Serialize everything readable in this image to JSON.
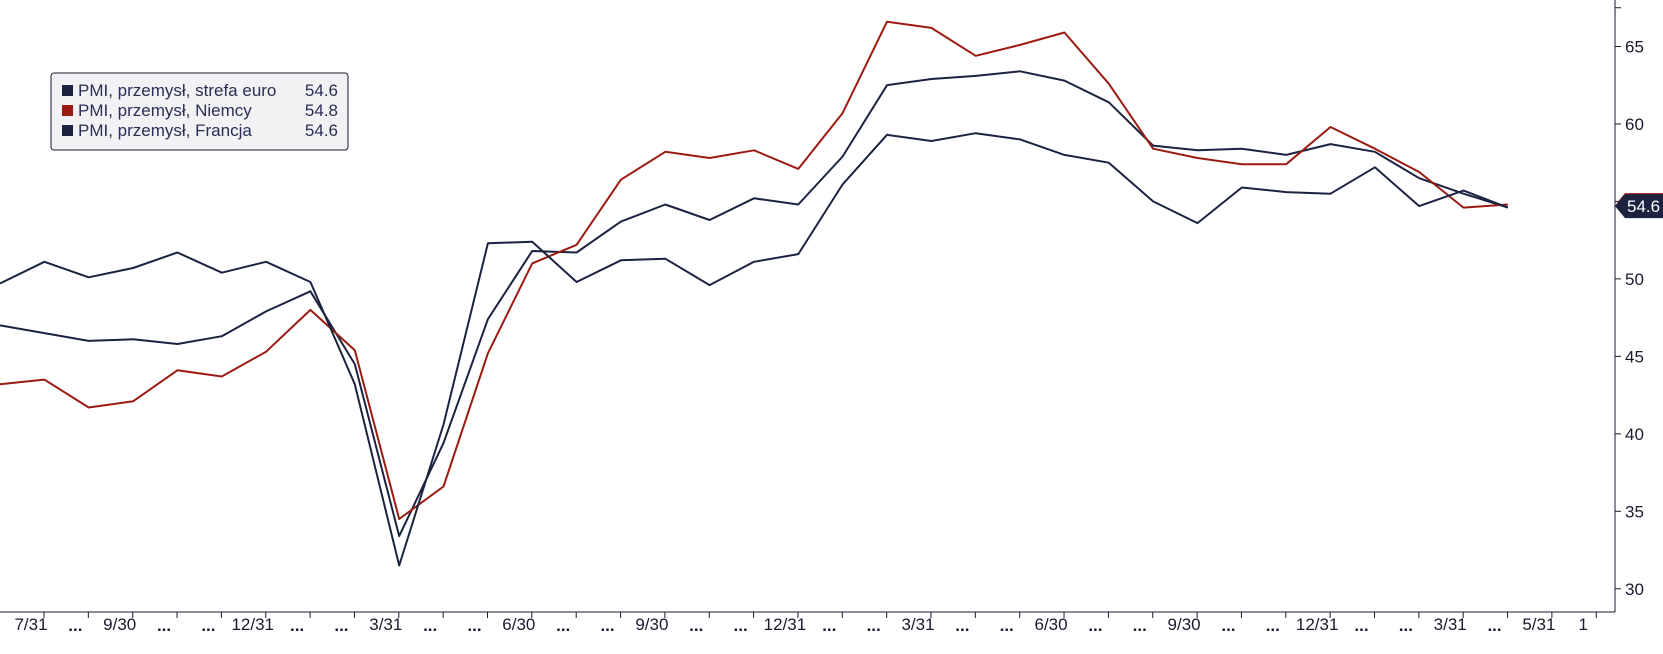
{
  "chart_data": {
    "type": "line",
    "title": "",
    "xlabel": "",
    "ylabel": "",
    "ylim": [
      28.5,
      68
    ],
    "yticks": [
      30,
      35,
      40,
      45,
      50,
      55,
      60,
      65
    ],
    "grid": false,
    "legend_position": "top-left",
    "x_tick_labels": [
      "7/31",
      "...",
      "9/30",
      "...",
      "...",
      "12/31",
      "...",
      "...",
      "3/31",
      "...",
      "...",
      "6/30",
      "...",
      "...",
      "9/30",
      "...",
      "...",
      "12/31",
      "...",
      "...",
      "3/31",
      "...",
      "...",
      "6/30",
      "...",
      "...",
      "9/30",
      "...",
      "...",
      "12/31",
      "...",
      "...",
      "3/31",
      "...",
      "5/31",
      "1"
    ],
    "x": [
      "2019-07",
      "2019-08",
      "2019-09",
      "2019-10",
      "2019-11",
      "2019-12",
      "2020-01",
      "2020-02",
      "2020-03",
      "2020-04",
      "2020-05",
      "2020-06",
      "2020-07",
      "2020-08",
      "2020-09",
      "2020-10",
      "2020-11",
      "2020-12",
      "2021-01",
      "2021-02",
      "2021-03",
      "2021-04",
      "2021-05",
      "2021-06",
      "2021-07",
      "2021-08",
      "2021-09",
      "2021-10",
      "2021-11",
      "2021-12",
      "2022-01",
      "2022-02",
      "2022-03",
      "2022-04",
      "2022-05"
    ],
    "series": [
      {
        "name": "PMI, przemysł, strefa euro",
        "color": "#1c2340",
        "last_value": "54.6",
        "values": [
          47.0,
          46.5,
          46.0,
          46.1,
          45.8,
          46.3,
          47.9,
          49.2,
          44.5,
          33.4,
          39.4,
          47.4,
          51.8,
          51.7,
          53.7,
          54.8,
          53.8,
          55.2,
          54.8,
          57.9,
          62.5,
          62.9,
          63.1,
          63.4,
          62.8,
          61.4,
          58.6,
          58.3,
          58.4,
          58.0,
          58.7,
          58.2,
          56.5,
          55.5,
          54.6
        ]
      },
      {
        "name": "PMI, przemysł, Niemcy",
        "color": "#9b1b12",
        "last_value": "54.8",
        "values": [
          43.2,
          43.5,
          41.7,
          42.1,
          44.1,
          43.7,
          45.3,
          48.0,
          45.4,
          34.5,
          36.6,
          45.2,
          51.0,
          52.2,
          56.4,
          58.2,
          57.8,
          58.3,
          57.1,
          60.7,
          66.6,
          66.2,
          64.4,
          65.1,
          65.9,
          62.6,
          58.4,
          57.8,
          57.4,
          57.4,
          59.8,
          58.4,
          56.9,
          54.6,
          54.8
        ]
      },
      {
        "name": "PMI, przemysł, Francja",
        "color": "#1c2340",
        "last_value": "54.6",
        "values": [
          49.7,
          51.1,
          50.1,
          50.7,
          51.7,
          50.4,
          51.1,
          49.8,
          43.2,
          31.5,
          40.6,
          52.3,
          52.4,
          49.8,
          51.2,
          51.3,
          49.6,
          51.1,
          51.6,
          56.1,
          59.3,
          58.9,
          59.4,
          59.0,
          58.0,
          57.5,
          55.0,
          53.6,
          55.9,
          55.6,
          55.5,
          57.2,
          54.7,
          55.7,
          54.6
        ]
      }
    ],
    "last_value_badge": "54.6"
  },
  "colors": {
    "axis": "#1a1a2e",
    "badge_bg": "#1c2340",
    "badge_accent": "#9b1b12",
    "legend_bg": "#f2f2f4"
  }
}
